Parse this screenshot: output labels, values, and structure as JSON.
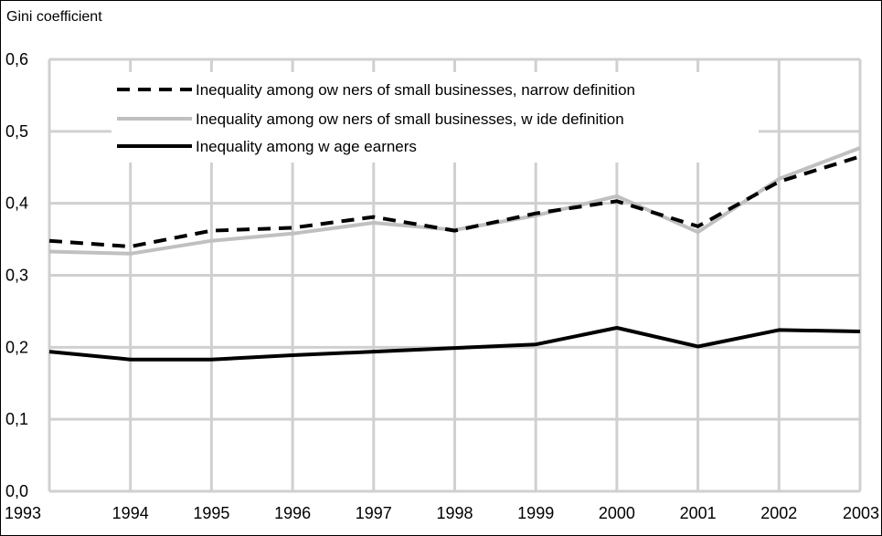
{
  "chart_data": {
    "type": "line",
    "title": "",
    "ylabel": "Gini coefficient",
    "xlabel": "",
    "x": [
      "1993",
      "1994",
      "1995",
      "1996",
      "1997",
      "1998",
      "1999",
      "2000",
      "2001",
      "2002",
      "2003"
    ],
    "ylim": [
      0,
      0.6
    ],
    "yticks": [
      "0,0",
      "0,1",
      "0,2",
      "0,3",
      "0,4",
      "0,5",
      "0,6"
    ],
    "grid": true,
    "legend_position": "top",
    "series": [
      {
        "name": "Inequality among ow ners of small businesses, narrow definition",
        "values": [
          0.348,
          0.34,
          0.362,
          0.366,
          0.381,
          0.362,
          0.386,
          0.403,
          0.368,
          0.43,
          0.465
        ],
        "color": "#000000",
        "style": "dashed"
      },
      {
        "name": "Inequality among ow ners of small businesses, w ide definition",
        "values": [
          0.333,
          0.33,
          0.348,
          0.358,
          0.373,
          0.363,
          0.383,
          0.41,
          0.36,
          0.434,
          0.477
        ],
        "color": "#c0c0c0",
        "style": "solid"
      },
      {
        "name": "Inequality among w age earners",
        "values": [
          0.194,
          0.183,
          0.183,
          0.189,
          0.194,
          0.199,
          0.204,
          0.227,
          0.201,
          0.224,
          0.222
        ],
        "color": "#000000",
        "style": "solid"
      }
    ]
  }
}
